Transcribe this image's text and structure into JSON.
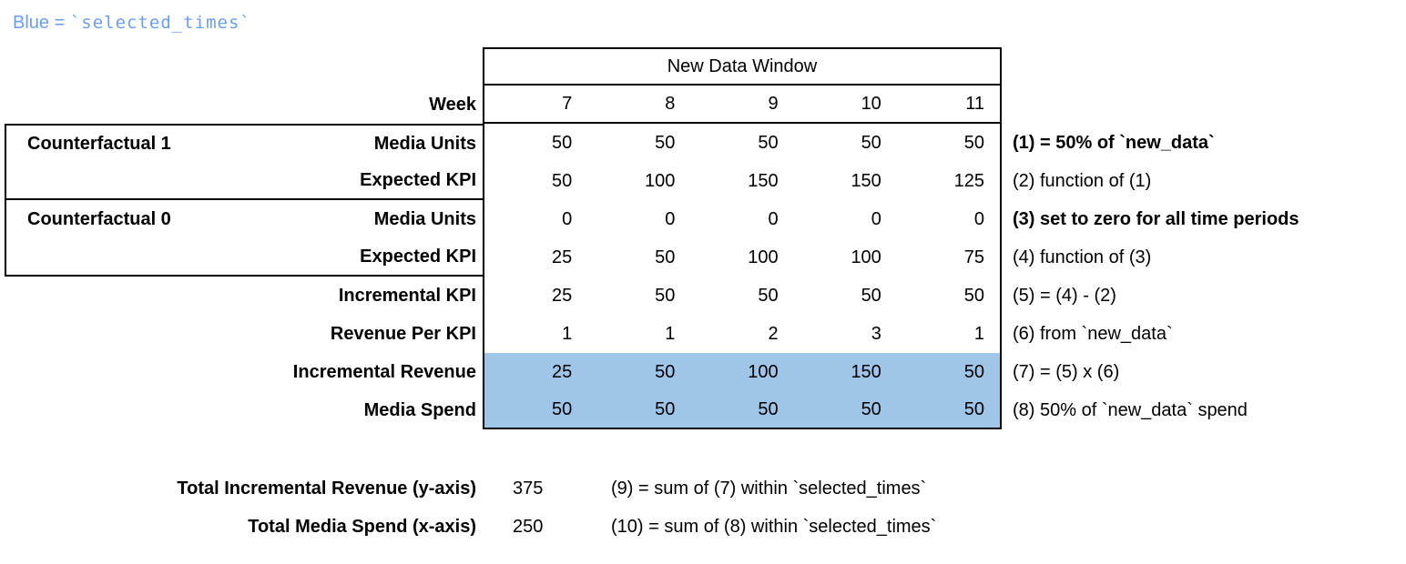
{
  "legend": {
    "prefix": "Blue = ",
    "code": "`selected_times`"
  },
  "table": {
    "header": "New Data Window",
    "week_label": "Week",
    "weeks": [
      "7",
      "8",
      "9",
      "10",
      "11"
    ],
    "rows": [
      {
        "group": "Counterfactual 1",
        "label": "Media Units",
        "values": [
          "50",
          "50",
          "50",
          "50",
          "50"
        ],
        "note": "(1) = 50% of `new_data`",
        "highlight": false
      },
      {
        "group": "",
        "label": "Expected KPI",
        "values": [
          "50",
          "100",
          "150",
          "150",
          "125"
        ],
        "note": "(2) function of (1)",
        "highlight": false
      },
      {
        "group": "Counterfactual 0",
        "label": "Media Units",
        "values": [
          "0",
          "0",
          "0",
          "0",
          "0"
        ],
        "note": "(3) set to zero for all time periods",
        "highlight": false
      },
      {
        "group": "",
        "label": "Expected KPI",
        "values": [
          "25",
          "50",
          "100",
          "100",
          "75"
        ],
        "note": "(4) function of (3)",
        "highlight": false
      },
      {
        "group": "",
        "label": "Incremental KPI",
        "values": [
          "25",
          "50",
          "50",
          "50",
          "50"
        ],
        "note": "(5) = (4) - (2)",
        "highlight": false
      },
      {
        "group": "",
        "label": "Revenue Per KPI",
        "values": [
          "1",
          "1",
          "2",
          "3",
          "1"
        ],
        "note": "(6) from `new_data`",
        "highlight": false
      },
      {
        "group": "",
        "label": "Incremental Revenue",
        "values": [
          "25",
          "50",
          "100",
          "150",
          "50"
        ],
        "note": "(7) = (5) x (6)",
        "highlight": true
      },
      {
        "group": "",
        "label": "Media Spend",
        "values": [
          "50",
          "50",
          "50",
          "50",
          "50"
        ],
        "note": "(8) 50% of `new_data` spend",
        "highlight": true
      }
    ]
  },
  "totals": [
    {
      "label": "Total Incremental Revenue (y-axis)",
      "value": "375",
      "note": "(9) = sum of (7) within `selected_times`"
    },
    {
      "label": "Total Media Spend (x-axis)",
      "value": "250",
      "note": "(10) = sum of (8) within `selected_times`"
    }
  ],
  "colors": {
    "highlight": "#9fc5e8",
    "legend_blue": "#6d9eeb",
    "border": "#000000"
  }
}
